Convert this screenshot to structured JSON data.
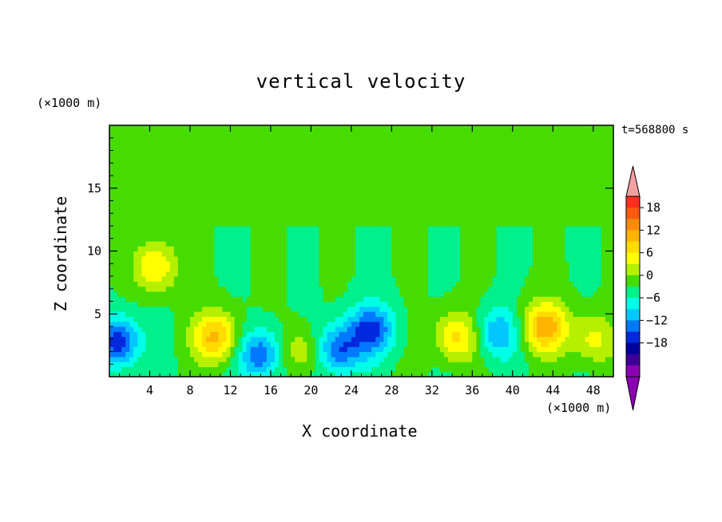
{
  "chart_data": {
    "type": "heatmap",
    "title": "vertical velocity",
    "xlabel": "X coordinate",
    "ylabel": "Z coordinate",
    "x_unit_label": "(×1000 m)",
    "z_unit_label": "(×1000 m)",
    "time_label": "t=568800 s",
    "xlim": [
      0,
      50
    ],
    "ylim": [
      0,
      20
    ],
    "x_ticks": [
      4,
      8,
      12,
      16,
      20,
      24,
      28,
      32,
      36,
      40,
      44,
      48
    ],
    "y_ticks": [
      5,
      10,
      15
    ],
    "colorbar": {
      "ticks": [
        18,
        12,
        6,
        0,
        -6,
        -12,
        -18
      ],
      "levels": [
        21,
        18,
        15,
        12,
        9,
        6,
        3,
        0,
        -3,
        -6,
        -9,
        -12,
        -15,
        -18,
        -21
      ],
      "colors": [
        "#ff3020",
        "#ff5a10",
        "#ff8c00",
        "#ffb400",
        "#ffdc00",
        "#ffff00",
        "#b4f000",
        "#46dc00",
        "#00f08c",
        "#00ffe6",
        "#00c8ff",
        "#0078ff",
        "#0028dc",
        "#0000a0",
        "#3c0096",
        "#8c00b4"
      ],
      "over_color": "#f5a0a0",
      "under_color": "#8c00b4"
    },
    "features": [
      {
        "x": 0.8,
        "z": 2.8,
        "value": -14
      },
      {
        "x": 4.6,
        "z": 8.8,
        "value": 9
      },
      {
        "x": 10.5,
        "z": 3.2,
        "value": 13
      },
      {
        "x": 15.0,
        "z": 1.8,
        "value": -12
      },
      {
        "x": 18.8,
        "z": 2.0,
        "value": 6
      },
      {
        "x": 22.8,
        "z": 2.2,
        "value": -12
      },
      {
        "x": 26.0,
        "z": 3.8,
        "value": -13
      },
      {
        "x": 34.5,
        "z": 3.2,
        "value": 10
      },
      {
        "x": 38.5,
        "z": 3.5,
        "value": -9
      },
      {
        "x": 43.2,
        "z": 4.0,
        "value": 14
      },
      {
        "x": 48.0,
        "z": 3.0,
        "value": 7
      }
    ]
  }
}
